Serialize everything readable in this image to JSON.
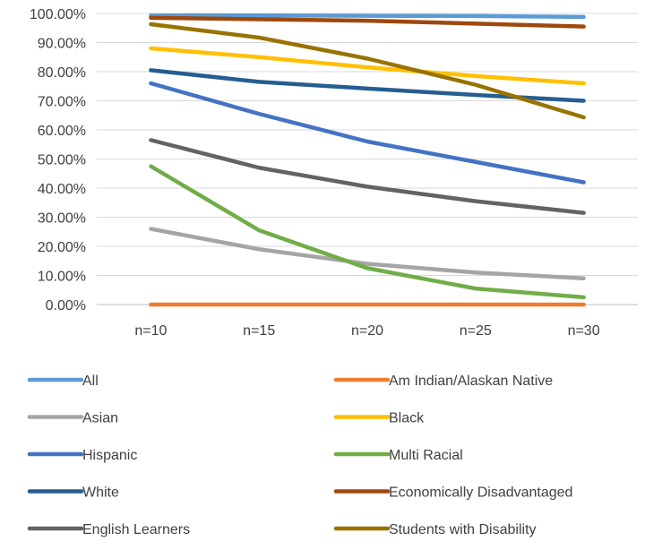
{
  "chart_data": {
    "type": "line",
    "categories": [
      "n=10",
      "n=15",
      "n=20",
      "n=25",
      "n=30"
    ],
    "ylim": [
      0,
      1
    ],
    "yticks": [
      "0.00%",
      "10.00%",
      "20.00%",
      "30.00%",
      "40.00%",
      "50.00%",
      "60.00%",
      "70.00%",
      "80.00%",
      "90.00%",
      "100.00%"
    ],
    "grid": true,
    "legend_position": "bottom",
    "series": [
      {
        "name": "All",
        "color": "#5B9BD5",
        "values": [
          0.993,
          0.993,
          0.992,
          0.991,
          0.988
        ]
      },
      {
        "name": "Am Indian/Alaskan Native",
        "color": "#ED7D31",
        "values": [
          0.0,
          0.0,
          0.0,
          0.0,
          0.0
        ]
      },
      {
        "name": "Asian",
        "color": "#A5A5A5",
        "values": [
          0.26,
          0.19,
          0.14,
          0.11,
          0.09
        ]
      },
      {
        "name": "Black",
        "color": "#FFC000",
        "values": [
          0.88,
          0.85,
          0.815,
          0.785,
          0.76
        ]
      },
      {
        "name": "Hispanic",
        "color": "#4472C4",
        "values": [
          0.76,
          0.655,
          0.56,
          0.49,
          0.42
        ]
      },
      {
        "name": "Multi Racial",
        "color": "#70AD47",
        "values": [
          0.475,
          0.255,
          0.125,
          0.055,
          0.025
        ]
      },
      {
        "name": "White",
        "color": "#255E91",
        "values": [
          0.805,
          0.765,
          0.742,
          0.72,
          0.7
        ]
      },
      {
        "name": "Economically Disadvantaged",
        "color": "#9E480E",
        "values": [
          0.985,
          0.98,
          0.975,
          0.965,
          0.955
        ]
      },
      {
        "name": "English Learners",
        "color": "#636363",
        "values": [
          0.565,
          0.47,
          0.405,
          0.355,
          0.315
        ]
      },
      {
        "name": "Students with Disability",
        "color": "#997300",
        "values": [
          0.963,
          0.917,
          0.845,
          0.755,
          0.643
        ]
      }
    ]
  }
}
